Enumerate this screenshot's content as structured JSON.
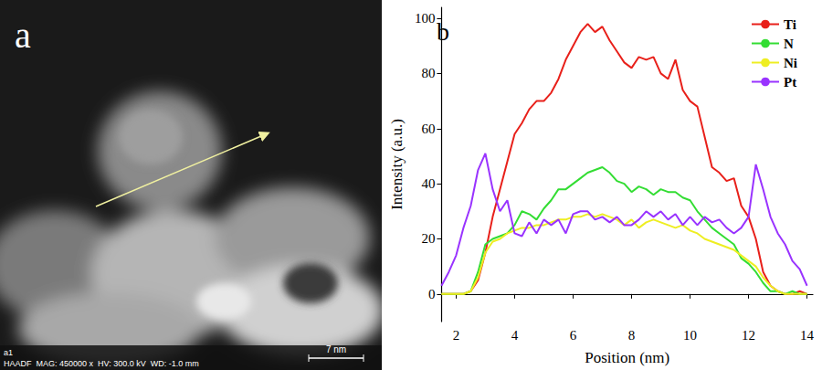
{
  "image_panel": {
    "panel_label": "a",
    "tag": "a1",
    "info": "HAADF  MAG: 450000 x  HV: 300.0 kV  WD: -1.0 mm",
    "scale_bar": "7 nm"
  },
  "chart_data": {
    "type": "line",
    "panel_label": "b",
    "x_label": "Position (nm)",
    "y_label": "Intensity (a.u.)",
    "x": [
      1.5,
      1.75,
      2.0,
      2.25,
      2.5,
      2.75,
      3.0,
      3.25,
      3.5,
      3.75,
      4.0,
      4.25,
      4.5,
      4.75,
      5.0,
      5.25,
      5.5,
      5.75,
      6.0,
      6.25,
      6.5,
      6.75,
      7.0,
      7.25,
      7.5,
      7.75,
      8.0,
      8.25,
      8.5,
      8.75,
      9.0,
      9.25,
      9.5,
      9.75,
      10.0,
      10.25,
      10.5,
      10.75,
      11.0,
      11.25,
      11.5,
      11.75,
      12.0,
      12.25,
      12.5,
      12.75,
      13.0,
      13.25,
      13.5,
      13.75,
      14.0
    ],
    "series": [
      {
        "name": "Ti",
        "color": "#e8201a",
        "values": [
          0,
          0,
          0,
          0,
          1,
          5,
          15,
          28,
          38,
          48,
          58,
          62,
          67,
          70,
          70,
          73,
          78,
          85,
          90,
          95,
          98,
          95,
          97,
          92,
          88,
          84,
          82,
          86,
          85,
          86,
          80,
          78,
          85,
          74,
          70,
          68,
          57,
          46,
          44,
          41,
          42,
          32,
          28,
          20,
          8,
          3,
          1,
          0,
          0,
          1,
          0
        ]
      },
      {
        "name": "N",
        "color": "#33dd33",
        "values": [
          0,
          0,
          0,
          0,
          1,
          8,
          18,
          20,
          21,
          22,
          25,
          30,
          29,
          27,
          31,
          34,
          38,
          38,
          40,
          42,
          44,
          45,
          46,
          44,
          41,
          40,
          37,
          39,
          38,
          36,
          38,
          37,
          37,
          35,
          34,
          30,
          27,
          24,
          22,
          20,
          18,
          13,
          11,
          8,
          4,
          1,
          1,
          0,
          1,
          0,
          0
        ]
      },
      {
        "name": "Ni",
        "color": "#eeee22",
        "values": [
          0,
          0,
          0,
          0,
          1,
          6,
          15,
          19,
          20,
          22,
          23,
          24,
          24,
          25,
          25,
          26,
          27,
          27,
          28,
          28,
          29,
          28,
          29,
          28,
          27,
          25,
          27,
          24,
          26,
          27,
          26,
          25,
          24,
          25,
          23,
          22,
          20,
          19,
          18,
          17,
          16,
          14,
          12,
          10,
          6,
          3,
          1,
          0,
          0,
          0,
          0
        ]
      },
      {
        "name": "Pt",
        "color": "#9933ff",
        "values": [
          3,
          8,
          14,
          24,
          32,
          45,
          51,
          38,
          30,
          34,
          22,
          21,
          26,
          22,
          27,
          25,
          27,
          22,
          29,
          30,
          30,
          27,
          28,
          26,
          28,
          25,
          25,
          27,
          30,
          28,
          30,
          27,
          29,
          25,
          28,
          25,
          28,
          26,
          27,
          24,
          22,
          24,
          28,
          47,
          38,
          28,
          22,
          18,
          12,
          9,
          3
        ]
      }
    ],
    "xlim": [
      1.5,
      14.2
    ],
    "xticks": [
      2,
      4,
      6,
      8,
      10,
      12,
      14
    ],
    "ylim": [
      -10,
      104
    ],
    "yticks": [
      0,
      20,
      40,
      60,
      80,
      100
    ],
    "grid": false,
    "legend": "upper right"
  }
}
